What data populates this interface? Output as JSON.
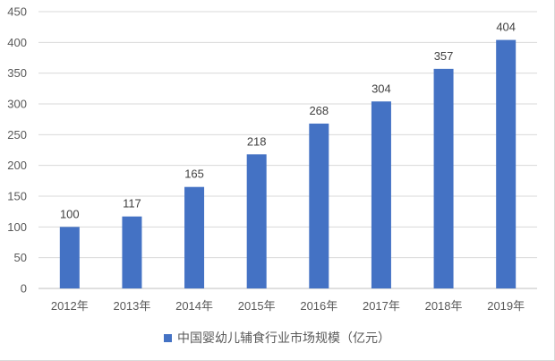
{
  "chart_data": {
    "type": "bar",
    "categories": [
      "2012年",
      "2013年",
      "2014年",
      "2015年",
      "2016年",
      "2017年",
      "2018年",
      "2019年"
    ],
    "series": [
      {
        "name": "中国婴幼儿辅食行业市场规模（亿元）",
        "values": [
          100,
          117,
          165,
          218,
          268,
          304,
          357,
          404
        ],
        "color": "#4472c4"
      }
    ],
    "ylim": [
      0,
      450
    ],
    "yticks": [
      0,
      50,
      100,
      150,
      200,
      250,
      300,
      350,
      400,
      450
    ],
    "grid": true,
    "legend_position": "bottom"
  },
  "legend": {
    "label": "中国婴幼儿辅食行业市场规模（亿元）",
    "color": "#4472c4"
  }
}
